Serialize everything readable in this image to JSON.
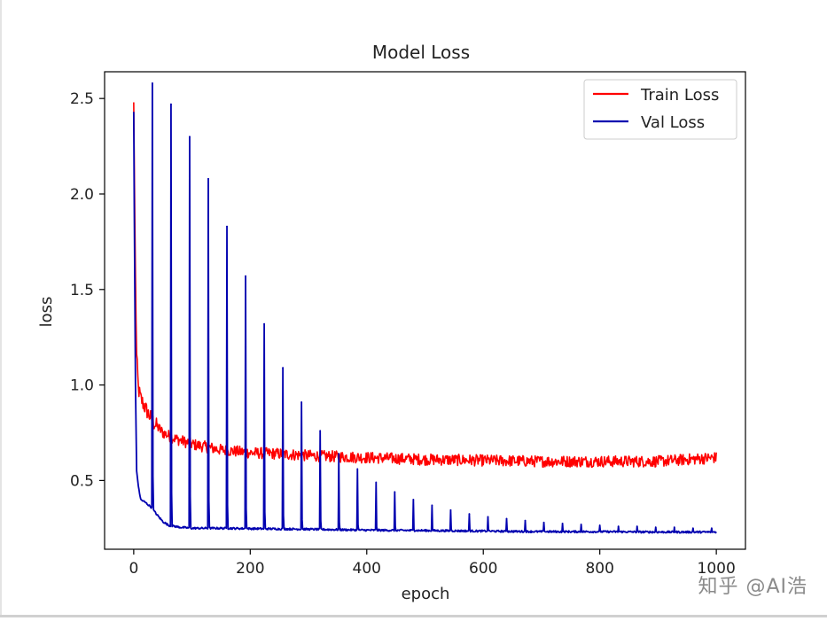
{
  "watermark": "知乎 @AI浩",
  "chart_data": {
    "type": "line",
    "title": "Model Loss",
    "xlabel": "epoch",
    "ylabel": "loss",
    "xlim": [
      -50,
      1050
    ],
    "ylim": [
      0.14,
      2.64
    ],
    "xticks": [
      0,
      200,
      400,
      600,
      800,
      1000
    ],
    "xtick_labels": [
      "0",
      "200",
      "400",
      "600",
      "800",
      "1000"
    ],
    "yticks": [
      0.5,
      1.0,
      1.5,
      2.0,
      2.5
    ],
    "ytick_labels": [
      "0.5",
      "1.0",
      "1.5",
      "2.0",
      "2.5"
    ],
    "legend_position": "top-right",
    "series": [
      {
        "name": "Train Loss",
        "color": "#ff0000",
        "x": [
          0,
          1,
          3,
          5,
          8,
          12,
          18,
          25,
          35,
          50,
          70,
          100,
          150,
          200,
          250,
          300,
          400,
          500,
          600,
          700,
          800,
          900,
          1000
        ],
        "values": [
          2.48,
          2.15,
          1.55,
          1.15,
          0.98,
          0.93,
          0.89,
          0.85,
          0.8,
          0.75,
          0.72,
          0.69,
          0.66,
          0.645,
          0.64,
          0.63,
          0.62,
          0.61,
          0.605,
          0.6,
          0.6,
          0.6,
          0.62
        ],
        "noise_amplitude": 0.03
      },
      {
        "name": "Val Loss",
        "color": "#0000b0",
        "x": [
          0,
          1,
          3,
          5,
          8,
          12,
          20,
          30,
          40,
          50,
          60,
          80,
          100,
          150,
          200,
          300,
          400,
          500,
          600,
          700,
          800,
          900,
          1000
        ],
        "values": [
          2.43,
          1.9,
          1.0,
          0.55,
          0.47,
          0.4,
          0.385,
          0.36,
          0.32,
          0.285,
          0.265,
          0.255,
          0.25,
          0.25,
          0.248,
          0.245,
          0.24,
          0.238,
          0.235,
          0.232,
          0.232,
          0.23,
          0.23
        ],
        "spikes": [
          {
            "epoch": 32,
            "peak": 2.58
          },
          {
            "epoch": 64,
            "peak": 2.47
          },
          {
            "epoch": 96,
            "peak": 2.3
          },
          {
            "epoch": 128,
            "peak": 2.08
          },
          {
            "epoch": 160,
            "peak": 1.83
          },
          {
            "epoch": 192,
            "peak": 1.57
          },
          {
            "epoch": 224,
            "peak": 1.32
          },
          {
            "epoch": 256,
            "peak": 1.09
          },
          {
            "epoch": 288,
            "peak": 0.91
          },
          {
            "epoch": 320,
            "peak": 0.76
          },
          {
            "epoch": 352,
            "peak": 0.64
          },
          {
            "epoch": 384,
            "peak": 0.56
          },
          {
            "epoch": 416,
            "peak": 0.49
          },
          {
            "epoch": 448,
            "peak": 0.44
          },
          {
            "epoch": 480,
            "peak": 0.4
          },
          {
            "epoch": 512,
            "peak": 0.37
          },
          {
            "epoch": 544,
            "peak": 0.345
          },
          {
            "epoch": 576,
            "peak": 0.325
          },
          {
            "epoch": 608,
            "peak": 0.31
          },
          {
            "epoch": 640,
            "peak": 0.3
          },
          {
            "epoch": 672,
            "peak": 0.29
          },
          {
            "epoch": 704,
            "peak": 0.28
          },
          {
            "epoch": 736,
            "peak": 0.275
          },
          {
            "epoch": 768,
            "peak": 0.27
          },
          {
            "epoch": 800,
            "peak": 0.265
          },
          {
            "epoch": 832,
            "peak": 0.26
          },
          {
            "epoch": 864,
            "peak": 0.26
          },
          {
            "epoch": 896,
            "peak": 0.255
          },
          {
            "epoch": 928,
            "peak": 0.255
          },
          {
            "epoch": 960,
            "peak": 0.25
          },
          {
            "epoch": 992,
            "peak": 0.25
          }
        ]
      }
    ]
  }
}
